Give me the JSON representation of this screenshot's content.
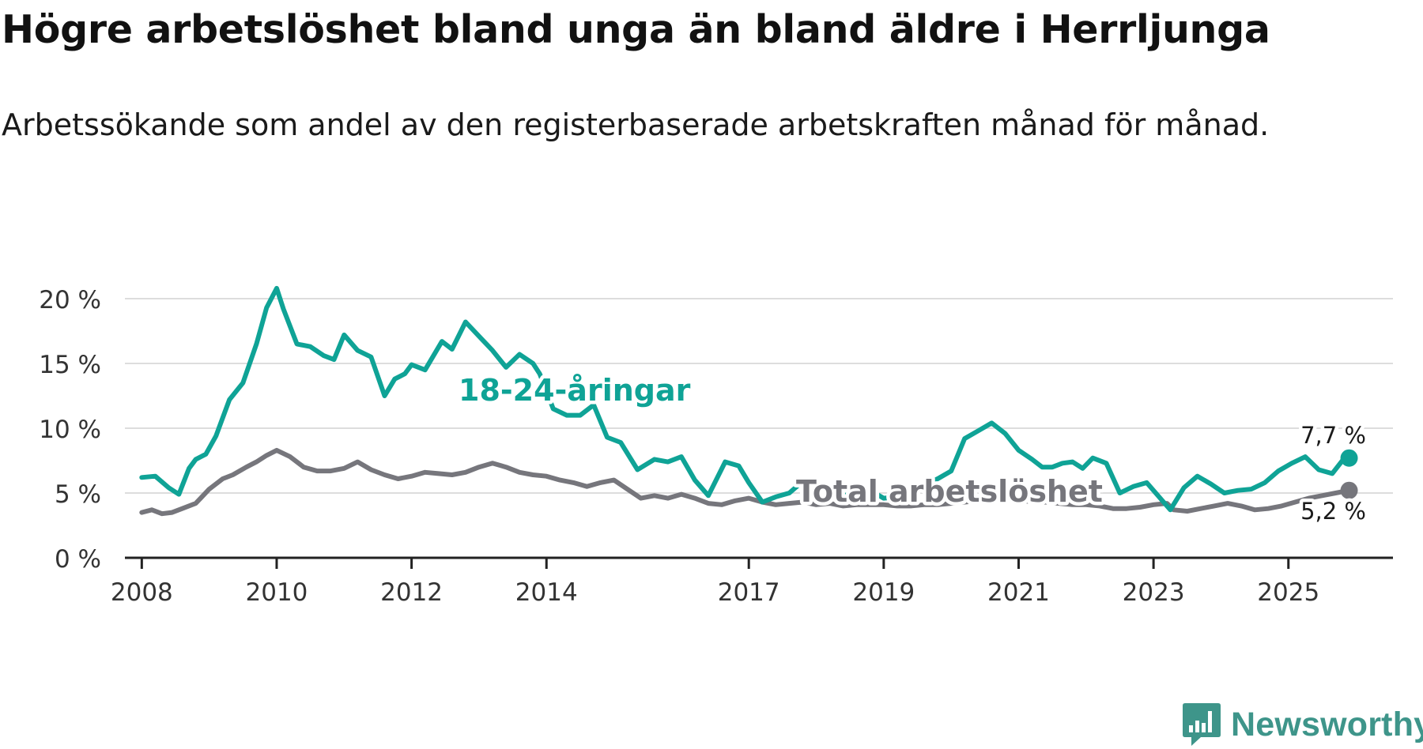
{
  "title": "Högre arbetslöshet bland unga än bland äldre i Herrljunga",
  "subtitle": "Arbetssökande som andel av den registerbaserade arbetskraften månad för månad.",
  "brand": {
    "name": "Newsworthy",
    "color": "#3e958a",
    "icon": "bar-chart-badge-icon"
  },
  "colors": {
    "youth": "#0fa396",
    "total": "#76767c",
    "grid": "#dddddd",
    "axis": "#222222"
  },
  "chart_data": {
    "type": "line",
    "title": "Högre arbetslöshet bland unga än bland äldre i Herrljunga",
    "xlabel": "",
    "ylabel": "",
    "ylim": [
      0,
      20
    ],
    "xlim": [
      2007.75,
      2026.55
    ],
    "y_ticks": [
      0,
      5,
      10,
      15,
      20
    ],
    "y_tick_labels": [
      "0 %",
      "5 %",
      "10 %",
      "15 %",
      "20 %"
    ],
    "x_ticks": [
      2008,
      2010,
      2012,
      2014,
      2017,
      2019,
      2021,
      2023,
      2025
    ],
    "x_tick_labels": [
      "2008",
      "2010",
      "2012",
      "2014",
      "2017",
      "2019",
      "2021",
      "2023",
      "2025"
    ],
    "grid": true,
    "series": [
      {
        "name": "18-24-åringar",
        "label_text": "18-24-åringar",
        "end_label": "7,7 %",
        "x": [
          2008.0,
          2008.2,
          2008.4,
          2008.55,
          2008.7,
          2008.8,
          2008.95,
          2009.1,
          2009.3,
          2009.5,
          2009.7,
          2009.85,
          2010.0,
          2010.1,
          2010.3,
          2010.5,
          2010.7,
          2010.85,
          2011.0,
          2011.2,
          2011.4,
          2011.6,
          2011.75,
          2011.9,
          2012.0,
          2012.2,
          2012.45,
          2012.6,
          2012.8,
          2013.0,
          2013.2,
          2013.4,
          2013.6,
          2013.8,
          2013.9,
          2014.1,
          2014.3,
          2014.5,
          2014.7,
          2014.9,
          2015.1,
          2015.35,
          2015.6,
          2015.8,
          2016.0,
          2016.2,
          2016.4,
          2016.65,
          2016.85,
          2017.0,
          2017.2,
          2017.4,
          2017.6,
          2017.8,
          2018.0,
          2018.2,
          2018.4,
          2018.6,
          2018.8,
          2019.0,
          2019.2,
          2019.4,
          2019.6,
          2019.8,
          2020.0,
          2020.2,
          2020.4,
          2020.6,
          2020.8,
          2021.0,
          2021.2,
          2021.35,
          2021.5,
          2021.65,
          2021.8,
          2021.95,
          2022.1,
          2022.3,
          2022.5,
          2022.7,
          2022.9,
          2023.1,
          2023.25,
          2023.45,
          2023.65,
          2023.85,
          2024.05,
          2024.25,
          2024.45,
          2024.65,
          2024.85,
          2025.05,
          2025.25,
          2025.45,
          2025.65,
          2025.8,
          2025.9
        ],
        "values": [
          6.2,
          6.3,
          5.4,
          4.9,
          6.9,
          7.6,
          8.0,
          9.4,
          12.2,
          13.5,
          16.5,
          19.3,
          20.8,
          19.2,
          16.5,
          16.3,
          15.6,
          15.3,
          17.2,
          16.0,
          15.5,
          12.5,
          13.8,
          14.2,
          14.9,
          14.5,
          16.7,
          16.1,
          18.2,
          17.1,
          16.0,
          14.7,
          15.7,
          15.0,
          14.2,
          11.5,
          11.0,
          11.0,
          11.8,
          9.3,
          8.9,
          6.8,
          7.6,
          7.4,
          7.8,
          6.0,
          4.8,
          7.4,
          7.1,
          5.8,
          4.3,
          4.7,
          5.0,
          5.9,
          5.5,
          5.1,
          4.8,
          5.0,
          5.2,
          4.6,
          4.7,
          5.1,
          5.6,
          6.1,
          6.7,
          9.2,
          9.8,
          10.4,
          9.6,
          8.3,
          7.6,
          7.0,
          7.0,
          7.3,
          7.4,
          6.9,
          7.7,
          7.3,
          5.0,
          5.5,
          5.8,
          4.6,
          3.7,
          5.4,
          6.3,
          5.7,
          5.0,
          5.2,
          5.3,
          5.8,
          6.7,
          7.3,
          7.8,
          6.8,
          6.5,
          7.5,
          7.7
        ]
      },
      {
        "name": "Total arbetslöshet",
        "label_text": "Total arbetslöshet",
        "end_label": "5,2 %",
        "x": [
          2008.0,
          2008.15,
          2008.3,
          2008.45,
          2008.6,
          2008.8,
          2009.0,
          2009.2,
          2009.35,
          2009.55,
          2009.7,
          2009.85,
          2010.0,
          2010.2,
          2010.4,
          2010.6,
          2010.8,
          2011.0,
          2011.2,
          2011.4,
          2011.6,
          2011.8,
          2012.0,
          2012.2,
          2012.4,
          2012.6,
          2012.8,
          2013.0,
          2013.2,
          2013.4,
          2013.6,
          2013.8,
          2014.0,
          2014.2,
          2014.4,
          2014.6,
          2014.8,
          2015.0,
          2015.2,
          2015.4,
          2015.6,
          2015.8,
          2016.0,
          2016.2,
          2016.4,
          2016.6,
          2016.8,
          2017.0,
          2017.2,
          2017.4,
          2017.6,
          2017.8,
          2018.0,
          2018.2,
          2018.4,
          2018.6,
          2018.8,
          2019.0,
          2019.2,
          2019.4,
          2019.6,
          2019.8,
          2020.0,
          2020.2,
          2020.4,
          2020.6,
          2020.8,
          2021.0,
          2021.2,
          2021.4,
          2021.6,
          2021.8,
          2022.0,
          2022.2,
          2022.4,
          2022.6,
          2022.8,
          2023.0,
          2023.2,
          2023.3,
          2023.5,
          2023.7,
          2023.9,
          2024.1,
          2024.3,
          2024.5,
          2024.7,
          2024.9,
          2025.1,
          2025.3,
          2025.5,
          2025.7,
          2025.9
        ],
        "values": [
          3.5,
          3.7,
          3.4,
          3.5,
          3.8,
          4.2,
          5.3,
          6.1,
          6.4,
          7.0,
          7.4,
          7.9,
          8.3,
          7.8,
          7.0,
          6.7,
          6.7,
          6.9,
          7.4,
          6.8,
          6.4,
          6.1,
          6.3,
          6.6,
          6.5,
          6.4,
          6.6,
          7.0,
          7.3,
          7.0,
          6.6,
          6.4,
          6.3,
          6.0,
          5.8,
          5.5,
          5.8,
          6.0,
          5.3,
          4.6,
          4.8,
          4.6,
          4.9,
          4.6,
          4.2,
          4.1,
          4.4,
          4.6,
          4.3,
          4.1,
          4.2,
          4.3,
          4.1,
          4.2,
          4.0,
          4.1,
          4.1,
          4.1,
          4.0,
          4.0,
          4.1,
          4.1,
          4.2,
          4.3,
          4.4,
          4.4,
          4.5,
          4.5,
          4.3,
          4.3,
          4.2,
          4.1,
          4.1,
          4.0,
          3.8,
          3.8,
          3.9,
          4.1,
          4.2,
          3.7,
          3.6,
          3.8,
          4.0,
          4.2,
          4.0,
          3.7,
          3.8,
          4.0,
          4.3,
          4.6,
          4.8,
          5.0,
          5.2
        ]
      }
    ]
  }
}
